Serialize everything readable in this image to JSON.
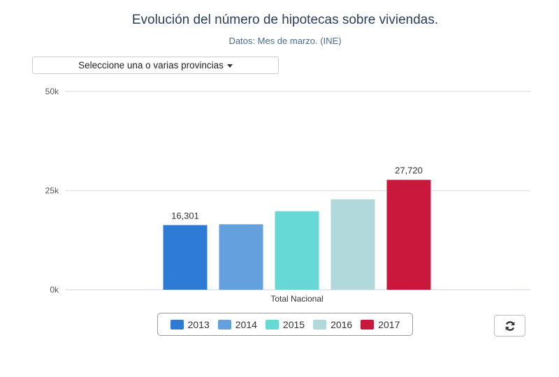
{
  "header": {
    "title": "Evolución del número de hipotecas sobre viviendas.",
    "subtitle": "Datos: Mes de marzo. (INE)"
  },
  "filter": {
    "label": "Seleccione una o varias provincias"
  },
  "toolbar": {
    "reset_icon": "refresh-icon"
  },
  "chart_data": {
    "type": "bar",
    "categories": [
      "Total Nacional"
    ],
    "series": [
      {
        "name": "2013",
        "values": [
          16301
        ],
        "color": "#2e7bd6"
      },
      {
        "name": "2014",
        "values": [
          16500
        ],
        "color": "#64a0de"
      },
      {
        "name": "2015",
        "values": [
          19800
        ],
        "color": "#66d9d6"
      },
      {
        "name": "2016",
        "values": [
          22800
        ],
        "color": "#b1d8da"
      },
      {
        "name": "2017",
        "values": [
          27720
        ],
        "color": "#c8193c"
      }
    ],
    "data_labels": [
      {
        "series": "2013",
        "text": "16,301"
      },
      {
        "series": "2017",
        "text": "27,720"
      }
    ],
    "y_ticks": [
      {
        "value": 0,
        "label": "0k"
      },
      {
        "value": 25000,
        "label": "25k"
      },
      {
        "value": 50000,
        "label": "50k"
      }
    ],
    "ylim": [
      0,
      50000
    ],
    "grid": true,
    "legend_position": "bottom-center"
  }
}
